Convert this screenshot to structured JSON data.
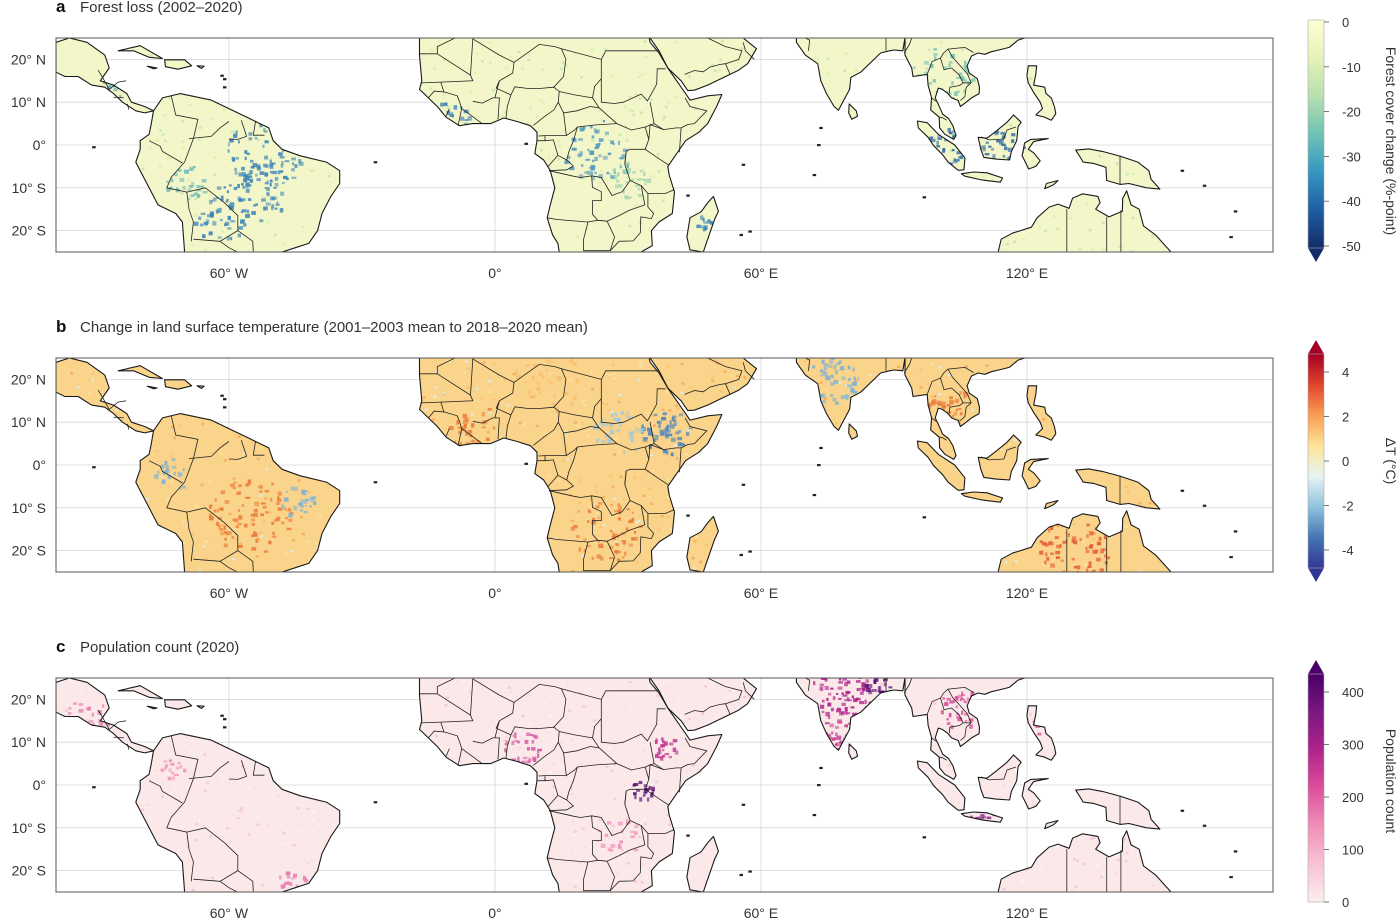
{
  "panels": [
    {
      "letter": "a",
      "title": "Forest loss (2002–2020)",
      "colorbar": {
        "title": "Forest cover change (%-point)",
        "ticks": [
          "0",
          "-10",
          "-20",
          "-30",
          "-40",
          "-50"
        ],
        "stops": [
          "#ffffd4",
          "#e6f2b8",
          "#b7dfae",
          "#6fc2b5",
          "#3597c0",
          "#1f5ea3",
          "#132c68"
        ]
      }
    },
    {
      "letter": "b",
      "title": "Change in land surface temperature (2001–2003 mean to 2018–2020 mean)",
      "colorbar": {
        "title": "ΔT (°C)",
        "ticks": [
          "4",
          "2",
          "0",
          "-2",
          "-4"
        ],
        "stops": [
          "#a50026",
          "#e0442d",
          "#f99d54",
          "#fee497",
          "#e7f4f4",
          "#8ec3dd",
          "#4675b4",
          "#313695"
        ]
      }
    },
    {
      "letter": "c",
      "title": "Population count (2020)",
      "colorbar": {
        "title": "Population count",
        "ticks": [
          "400",
          "300",
          "200",
          "100",
          "0"
        ],
        "stops": [
          "#4a0068",
          "#7a177f",
          "#b0238c",
          "#dd4f9c",
          "#f08fb8",
          "#f8c3d5",
          "#fdeeee"
        ]
      }
    }
  ],
  "axes": {
    "lat_labels": [
      "20° N",
      "10° N",
      "0°",
      "10° S",
      "20° S"
    ],
    "lon_labels": [
      "60° W",
      "0°",
      "60° E",
      "120° E"
    ]
  },
  "colors": {
    "forest_land": "#f3f6c9",
    "forest_loss": "#3f86b8",
    "temp_land": "#f9d48a",
    "temp_warm": "#ec7a3c",
    "temp_cool": "#7fb2d6",
    "pop_land": "#fbe9ea",
    "pop_dense": "#b0238c"
  }
}
